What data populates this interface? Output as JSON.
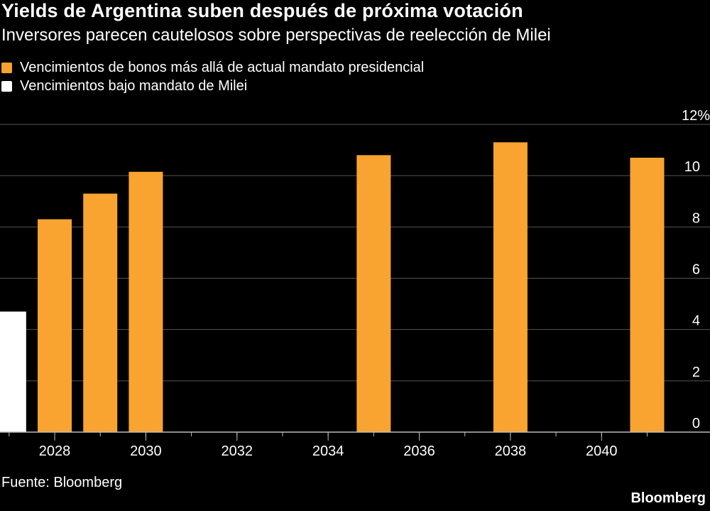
{
  "title": "Yields de Argentina suben después de próxima votación",
  "subtitle": "Inversores parecen cautelosos sobre perspectivas de reelección de Milei",
  "source": "Fuente: Bloomberg",
  "brand": "Bloomberg",
  "colors": {
    "background": "#000000",
    "orange": "#f9a430",
    "white": "#ffffff",
    "grid": "#555555",
    "text": "#ffffff"
  },
  "legend": [
    {
      "label": "Vencimientos de bonos más allá de actual mandato presidencial",
      "color": "#f9a430"
    },
    {
      "label": "Vencimientos bajo mandato de Milei",
      "color": "#ffffff"
    }
  ],
  "chart_data": {
    "type": "bar",
    "y_unit_suffix": "%",
    "ylim": [
      0,
      12
    ],
    "yticks": [
      0,
      2,
      4,
      6,
      8,
      10,
      12
    ],
    "xlim": [
      2026.8,
      2041.6
    ],
    "xticks": [
      2028,
      2030,
      2032,
      2034,
      2036,
      2038,
      2040
    ],
    "grid": true,
    "y_axis_position": "right",
    "legend_position": "top-left",
    "series": [
      {
        "name": "Vencimientos bajo mandato de Milei",
        "color": "#ffffff",
        "x": [
          2027
        ],
        "values": [
          4.7
        ]
      },
      {
        "name": "Vencimientos de bonos más allá de actual mandato presidencial",
        "color": "#f9a430",
        "x": [
          2028,
          2029,
          2030,
          2035,
          2038,
          2041
        ],
        "values": [
          8.3,
          9.3,
          10.15,
          10.8,
          11.3,
          10.7
        ]
      }
    ]
  }
}
